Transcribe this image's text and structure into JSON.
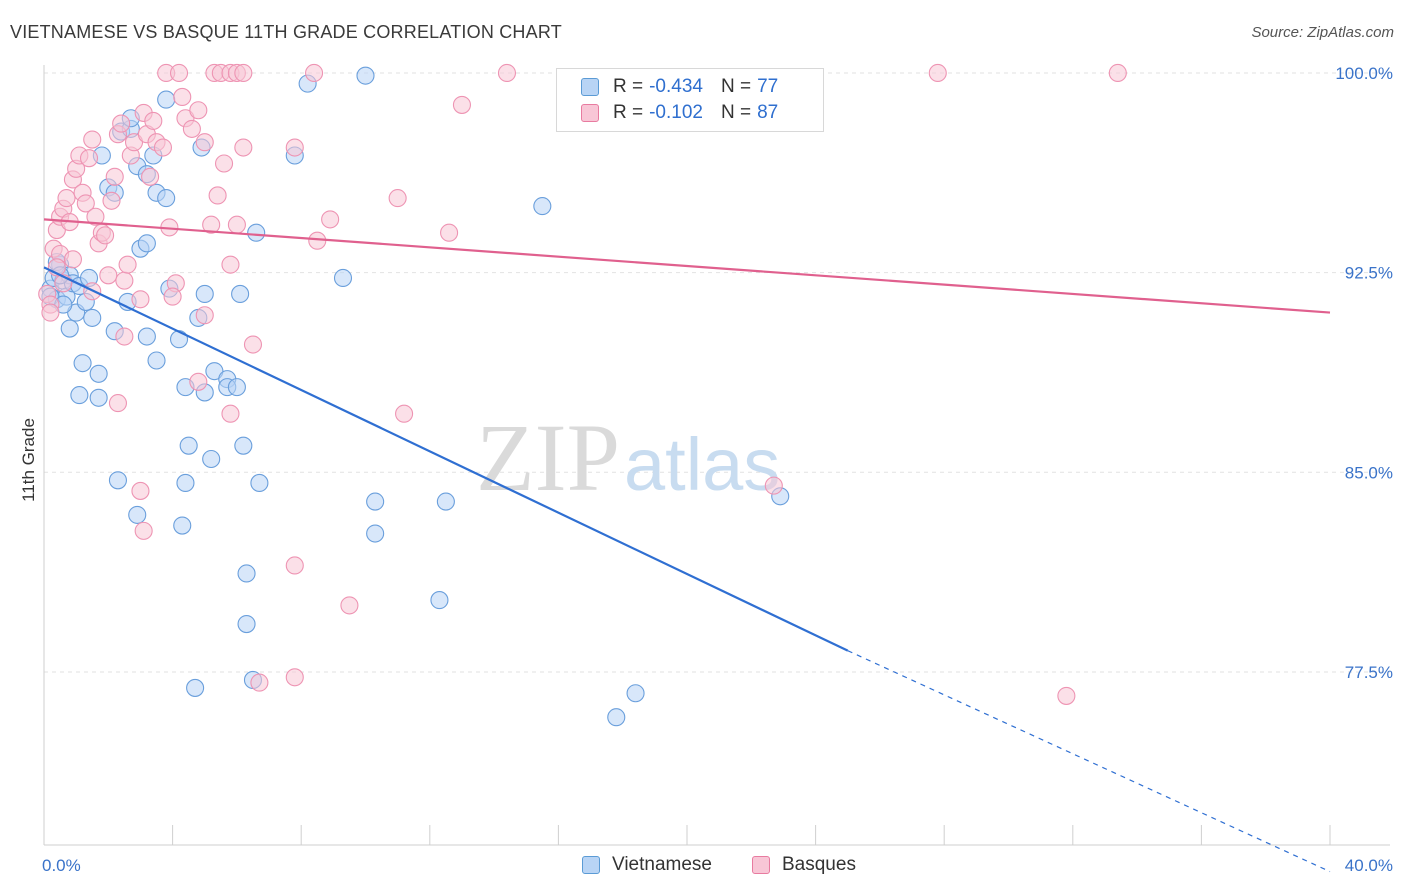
{
  "title": "VIETNAMESE VS BASQUE 11TH GRADE CORRELATION CHART",
  "source": "Source: ZipAtlas.com",
  "watermark": {
    "zip": "ZIP",
    "atlas": "atlas"
  },
  "legend_stats": [
    {
      "r_label": "R =",
      "r_value": "-0.434",
      "n_label": "N =",
      "n_value": "77",
      "color": "#5b9bd5",
      "fill": "#b8d4f5"
    },
    {
      "r_label": "R =",
      "r_value": "-0.102",
      "n_label": "N =",
      "n_value": "87",
      "color": "#e87ba0",
      "fill": "#f8c6d6"
    }
  ],
  "bottom_legend": [
    {
      "label": "Vietnamese",
      "fill": "#b8d4f5",
      "stroke": "#5b9bd5"
    },
    {
      "label": "Basques",
      "fill": "#f8c6d6",
      "stroke": "#e87ba0"
    }
  ],
  "chart_data": {
    "type": "scatter",
    "title": "VIETNAMESE VS BASQUE 11TH GRADE CORRELATION CHART",
    "xlabel": "",
    "ylabel": "11th Grade",
    "xlim": [
      0,
      40
    ],
    "ylim": [
      71,
      100.3
    ],
    "x_tick_labels": [
      {
        "value": 0,
        "label": "0.0%"
      },
      {
        "value": 40,
        "label": "40.0%"
      }
    ],
    "y_tick_labels": [
      {
        "value": 100,
        "label": "100.0%"
      },
      {
        "value": 92.5,
        "label": "92.5%"
      },
      {
        "value": 85,
        "label": "85.0%"
      },
      {
        "value": 77.5,
        "label": "77.5%"
      }
    ],
    "grid": true,
    "series": [
      {
        "name": "Vietnamese",
        "color": "#2f6fd2",
        "fill": "#b8d4f5",
        "stroke": "#6a9fdc",
        "trend": {
          "x0": 0,
          "y0": 92.7,
          "x1": 25,
          "y1": 78.3,
          "dash_to_x": 40,
          "dash_to_y": 70.0
        },
        "points": [
          [
            0.2,
            91.9
          ],
          [
            0.3,
            92.3
          ],
          [
            0.4,
            91.5
          ],
          [
            0.5,
            92.8
          ],
          [
            0.6,
            92.2
          ],
          [
            0.7,
            91.6
          ],
          [
            0.8,
            92.4
          ],
          [
            0.9,
            92.1
          ],
          [
            0.8,
            90.4
          ],
          [
            1.0,
            91.0
          ],
          [
            1.1,
            92.0
          ],
          [
            1.3,
            91.4
          ],
          [
            1.4,
            92.3
          ],
          [
            1.5,
            90.8
          ],
          [
            1.2,
            89.1
          ],
          [
            1.7,
            88.7
          ],
          [
            1.1,
            87.9
          ],
          [
            1.7,
            87.8
          ],
          [
            1.8,
            96.9
          ],
          [
            2.0,
            95.7
          ],
          [
            2.2,
            95.5
          ],
          [
            2.4,
            97.8
          ],
          [
            2.7,
            97.9
          ],
          [
            2.9,
            96.5
          ],
          [
            3.2,
            96.2
          ],
          [
            3.4,
            96.9
          ],
          [
            3.5,
            95.5
          ],
          [
            3.0,
            93.4
          ],
          [
            3.2,
            93.6
          ],
          [
            2.6,
            91.4
          ],
          [
            2.2,
            90.3
          ],
          [
            3.2,
            90.1
          ],
          [
            3.5,
            89.2
          ],
          [
            3.9,
            91.9
          ],
          [
            4.2,
            90.0
          ],
          [
            4.4,
            88.2
          ],
          [
            4.8,
            90.8
          ],
          [
            5.0,
            91.7
          ],
          [
            5.3,
            88.8
          ],
          [
            5.7,
            88.5
          ],
          [
            6.1,
            91.7
          ],
          [
            4.5,
            86.0
          ],
          [
            6.2,
            86.0
          ],
          [
            5.2,
            85.5
          ],
          [
            4.4,
            84.6
          ],
          [
            6.7,
            84.6
          ],
          [
            2.3,
            84.7
          ],
          [
            2.9,
            83.4
          ],
          [
            4.3,
            83.0
          ],
          [
            5.0,
            88.0
          ],
          [
            5.7,
            88.2
          ],
          [
            6.0,
            88.2
          ],
          [
            6.6,
            94.0
          ],
          [
            7.8,
            96.9
          ],
          [
            9.3,
            92.3
          ],
          [
            8.2,
            99.6
          ],
          [
            3.8,
            99.0
          ],
          [
            2.7,
            98.3
          ],
          [
            3.8,
            95.3
          ],
          [
            4.9,
            97.2
          ],
          [
            10.0,
            99.9
          ],
          [
            10.3,
            83.9
          ],
          [
            10.3,
            82.7
          ],
          [
            12.5,
            83.9
          ],
          [
            12.3,
            80.2
          ],
          [
            6.3,
            81.2
          ],
          [
            6.3,
            79.3
          ],
          [
            6.5,
            77.2
          ],
          [
            4.7,
            76.9
          ],
          [
            18.4,
            76.7
          ],
          [
            17.8,
            75.8
          ],
          [
            22.9,
            84.1
          ],
          [
            15.5,
            95.0
          ],
          [
            0.2,
            91.6
          ],
          [
            0.4,
            92.9
          ],
          [
            0.5,
            92.4
          ],
          [
            0.6,
            91.3
          ]
        ]
      },
      {
        "name": "Basques",
        "color": "#e0608e",
        "fill": "#f8c6d6",
        "stroke": "#ee94b3",
        "trend": {
          "x0": 0,
          "y0": 94.5,
          "x1": 40,
          "y1": 91.0
        },
        "points": [
          [
            0.1,
            91.7
          ],
          [
            0.2,
            91.3
          ],
          [
            0.3,
            93.4
          ],
          [
            0.4,
            94.1
          ],
          [
            0.5,
            93.2
          ],
          [
            0.5,
            94.6
          ],
          [
            0.6,
            94.9
          ],
          [
            0.7,
            95.3
          ],
          [
            0.8,
            94.4
          ],
          [
            0.9,
            96.0
          ],
          [
            1.0,
            96.4
          ],
          [
            1.1,
            96.9
          ],
          [
            1.2,
            95.5
          ],
          [
            1.3,
            95.1
          ],
          [
            1.4,
            96.8
          ],
          [
            1.5,
            97.5
          ],
          [
            1.6,
            94.6
          ],
          [
            1.7,
            93.6
          ],
          [
            1.8,
            94.0
          ],
          [
            1.9,
            93.9
          ],
          [
            2.0,
            92.4
          ],
          [
            2.1,
            95.2
          ],
          [
            2.2,
            96.1
          ],
          [
            2.3,
            97.7
          ],
          [
            2.4,
            98.1
          ],
          [
            2.5,
            92.2
          ],
          [
            2.6,
            92.8
          ],
          [
            2.7,
            96.9
          ],
          [
            2.8,
            97.4
          ],
          [
            3.0,
            91.5
          ],
          [
            3.1,
            98.5
          ],
          [
            3.2,
            97.7
          ],
          [
            3.3,
            96.1
          ],
          [
            3.4,
            98.2
          ],
          [
            3.5,
            97.4
          ],
          [
            3.7,
            97.2
          ],
          [
            3.9,
            94.2
          ],
          [
            4.1,
            92.1
          ],
          [
            4.3,
            99.1
          ],
          [
            4.4,
            98.3
          ],
          [
            4.6,
            97.9
          ],
          [
            4.8,
            98.6
          ],
          [
            5.0,
            97.4
          ],
          [
            5.2,
            94.3
          ],
          [
            5.4,
            95.4
          ],
          [
            5.6,
            96.6
          ],
          [
            5.8,
            92.8
          ],
          [
            6.0,
            94.3
          ],
          [
            6.2,
            97.2
          ],
          [
            6.5,
            89.8
          ],
          [
            3.8,
            100.0
          ],
          [
            4.2,
            100.0
          ],
          [
            5.3,
            100.0
          ],
          [
            5.5,
            100.0
          ],
          [
            5.8,
            100.0
          ],
          [
            6.0,
            100.0
          ],
          [
            6.2,
            100.0
          ],
          [
            8.4,
            100.0
          ],
          [
            14.4,
            100.0
          ],
          [
            27.8,
            100.0
          ],
          [
            33.4,
            100.0
          ],
          [
            7.8,
            97.2
          ],
          [
            8.9,
            94.5
          ],
          [
            8.5,
            93.7
          ],
          [
            11.0,
            95.3
          ],
          [
            12.6,
            94.0
          ],
          [
            13.0,
            98.8
          ],
          [
            4.8,
            88.4
          ],
          [
            5.8,
            87.2
          ],
          [
            11.2,
            87.2
          ],
          [
            2.3,
            87.6
          ],
          [
            3.0,
            84.3
          ],
          [
            3.1,
            82.8
          ],
          [
            7.8,
            81.5
          ],
          [
            9.5,
            80.0
          ],
          [
            7.8,
            77.3
          ],
          [
            6.7,
            77.1
          ],
          [
            22.7,
            84.5
          ],
          [
            31.8,
            76.6
          ],
          [
            5.0,
            90.9
          ],
          [
            2.5,
            90.1
          ],
          [
            4.0,
            91.6
          ],
          [
            0.2,
            91.0
          ],
          [
            0.4,
            92.7
          ],
          [
            0.6,
            92.1
          ],
          [
            1.5,
            91.8
          ],
          [
            0.9,
            93.0
          ]
        ]
      }
    ]
  }
}
